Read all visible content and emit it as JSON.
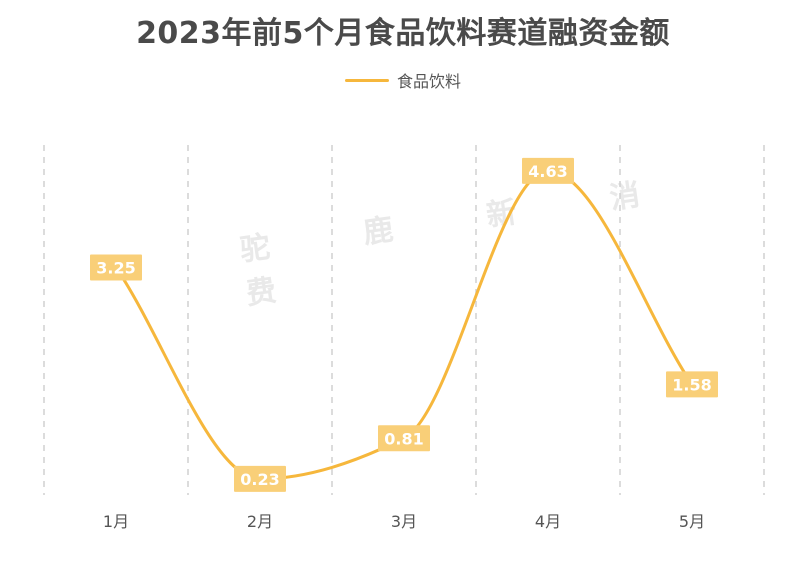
{
  "chart_data": {
    "type": "line",
    "title": "2023年前5个月食品饮料赛道融资金额",
    "categories": [
      "1月",
      "2月",
      "3月",
      "4月",
      "5月"
    ],
    "series": [
      {
        "name": "食品饮料",
        "values": [
          3.25,
          0.23,
          0.81,
          4.63,
          1.58
        ],
        "color": "#f6b73c"
      }
    ],
    "ylim": [
      0,
      5
    ],
    "grid": "vertical-dashed",
    "legend": "top-center",
    "watermark": "驼 鹿 新 消 费",
    "label_bg_color": "#f9cf78",
    "grid_color": "#d0d0d0"
  }
}
